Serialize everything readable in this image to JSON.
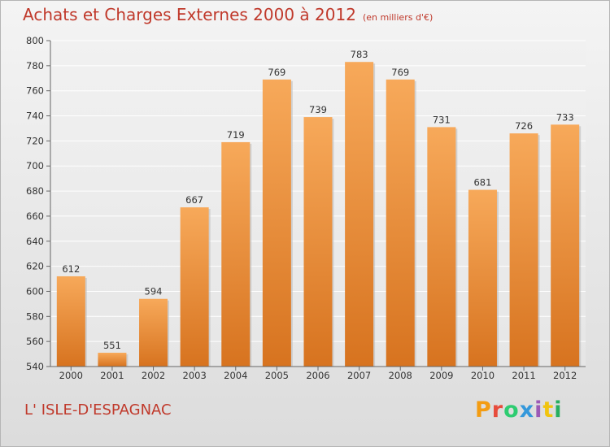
{
  "header": {
    "title": "Achats et Charges Externes 2000 à 2012",
    "unit": "(en milliers d'€)"
  },
  "footer": {
    "commune": "L' ISLE-D'ESPAGNAC",
    "brand": "Proxiti"
  },
  "colors": {
    "title": "#c0392b",
    "bar_light": "#f7a95a",
    "bar_dark": "#d7731f",
    "logo_letters": [
      "#f39c12",
      "#e74c3c",
      "#2ecc71",
      "#3498db",
      "#9b59b6",
      "#f1c40f",
      "#27ae60"
    ]
  },
  "chart_data": {
    "type": "bar",
    "title": "Achats et Charges Externes 2000 à 2012",
    "subtitle": "(en milliers d'€)",
    "xlabel": "",
    "ylabel": "",
    "categories": [
      "2000",
      "2001",
      "2002",
      "2003",
      "2004",
      "2005",
      "2006",
      "2007",
      "2008",
      "2009",
      "2010",
      "2011",
      "2012"
    ],
    "values": [
      612,
      551,
      594,
      667,
      719,
      769,
      739,
      783,
      769,
      731,
      681,
      726,
      733
    ],
    "ylim": [
      540,
      800
    ],
    "yticks": [
      540,
      560,
      580,
      600,
      620,
      640,
      660,
      680,
      700,
      720,
      740,
      760,
      780,
      800
    ],
    "grid": true,
    "legend": "none"
  }
}
